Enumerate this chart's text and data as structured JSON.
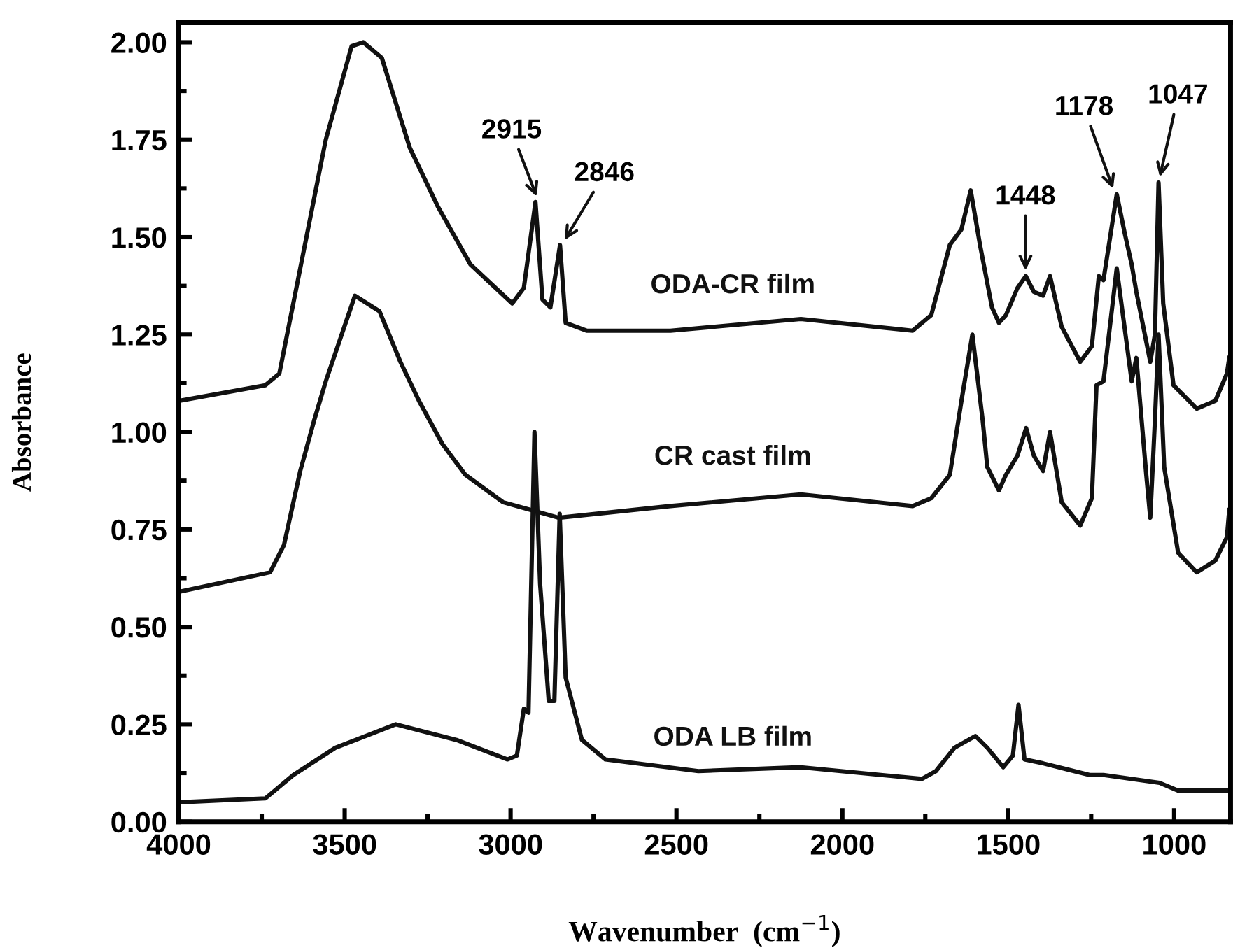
{
  "chart_data": {
    "type": "line",
    "xlabel": "Wavenumber  (cm$^{−1}$)",
    "ylabel": "Absorbance",
    "xlim": [
      4000,
      830
    ],
    "ylim": [
      0,
      2.05
    ],
    "xticks": [
      4000,
      {
        "value": 3750,
        "label": null
      },
      3500,
      {
        "value": 3250,
        "label": null
      },
      3000,
      {
        "value": 2750,
        "label": null
      },
      2500,
      {
        "value": 2250,
        "label": null
      },
      2000,
      {
        "value": 1750,
        "label": null
      },
      1500,
      {
        "value": 1250,
        "label": null
      },
      1000
    ],
    "yticks": [
      {
        "value": 0,
        "label": "0.00"
      },
      {
        "value": 0.125,
        "label": null
      },
      {
        "value": 0.25,
        "label": "0.25"
      },
      {
        "value": 0.375,
        "label": null
      },
      {
        "value": 0.5,
        "label": "0.50"
      },
      {
        "value": 0.625,
        "label": null
      },
      {
        "value": 0.75,
        "label": "0.75"
      },
      {
        "value": 0.875,
        "label": null
      },
      {
        "value": 1,
        "label": "1.00"
      },
      {
        "value": 1.125,
        "label": null
      },
      {
        "value": 1.25,
        "label": "1.25"
      },
      {
        "value": 1.375,
        "label": null
      },
      {
        "value": 1.5,
        "label": "1.50"
      },
      {
        "value": 1.625,
        "label": null
      },
      {
        "value": 1.75,
        "label": "1.75"
      },
      {
        "value": 1.875,
        "label": null
      },
      {
        "value": 2,
        "label": "2.00"
      }
    ],
    "grid": false,
    "legend": false,
    "marker": "none",
    "line_style": "solid",
    "series": [
      {
        "name": "ODA-CR film",
        "color": "#111111",
        "x": [
          4000,
          3739,
          3697,
          3641,
          3557,
          3479,
          3444,
          3388,
          3304,
          3220,
          3121,
          2995,
          2960,
          2925,
          2904,
          2880,
          2851,
          2834,
          2771,
          2518,
          2125,
          1788,
          1732,
          1676,
          1641,
          1613,
          1585,
          1549,
          1528,
          1507,
          1472,
          1447,
          1423,
          1395,
          1374,
          1339,
          1283,
          1248,
          1227,
          1213,
          1173,
          1149,
          1128,
          1114,
          1072,
          1058,
          1047,
          1033,
          1002,
          932,
          876,
          841,
          834
        ],
        "values": [
          1.08,
          1.12,
          1.15,
          1.39,
          1.75,
          1.99,
          2.0,
          1.96,
          1.73,
          1.58,
          1.43,
          1.33,
          1.37,
          1.59,
          1.34,
          1.32,
          1.48,
          1.28,
          1.26,
          1.26,
          1.29,
          1.26,
          1.3,
          1.48,
          1.52,
          1.62,
          1.48,
          1.32,
          1.28,
          1.3,
          1.37,
          1.4,
          1.36,
          1.35,
          1.4,
          1.27,
          1.18,
          1.22,
          1.4,
          1.39,
          1.61,
          1.51,
          1.43,
          1.36,
          1.18,
          1.25,
          1.64,
          1.33,
          1.12,
          1.06,
          1.08,
          1.15,
          1.19
        ]
      },
      {
        "name": "CR cast film",
        "color": "#111111",
        "x": [
          4000,
          3725,
          3683,
          3634,
          3592,
          3557,
          3469,
          3395,
          3332,
          3276,
          3206,
          3136,
          3023,
          2855,
          2518,
          2125,
          1788,
          1732,
          1676,
          1641,
          1608,
          1577,
          1563,
          1528,
          1507,
          1472,
          1446,
          1423,
          1395,
          1374,
          1339,
          1283,
          1248,
          1234,
          1213,
          1173,
          1128,
          1114,
          1084,
          1072,
          1058,
          1047,
          1030,
          988,
          932,
          876,
          841,
          834
        ],
        "values": [
          0.59,
          0.64,
          0.71,
          0.9,
          1.03,
          1.13,
          1.35,
          1.31,
          1.18,
          1.08,
          0.97,
          0.89,
          0.82,
          0.78,
          0.81,
          0.84,
          0.81,
          0.83,
          0.89,
          1.08,
          1.25,
          1.03,
          0.91,
          0.85,
          0.89,
          0.94,
          1.01,
          0.94,
          0.9,
          1.0,
          0.82,
          0.76,
          0.83,
          1.12,
          1.13,
          1.42,
          1.13,
          1.19,
          0.89,
          0.78,
          1.03,
          1.25,
          0.91,
          0.69,
          0.64,
          0.67,
          0.73,
          0.8
        ]
      },
      {
        "name": "ODA LB film",
        "color": "#111111",
        "x": [
          4000,
          3739,
          3655,
          3528,
          3346,
          3163,
          3009,
          2981,
          2960,
          2946,
          2928,
          2911,
          2885,
          2868,
          2852,
          2834,
          2785,
          2714,
          2434,
          2125,
          1760,
          1718,
          1662,
          1599,
          1563,
          1515,
          1486,
          1469,
          1451,
          1395,
          1255,
          1213,
          1044,
          988,
          834
        ],
        "values": [
          0.05,
          0.06,
          0.12,
          0.19,
          0.25,
          0.21,
          0.16,
          0.17,
          0.29,
          0.28,
          1.0,
          0.61,
          0.31,
          0.31,
          0.79,
          0.37,
          0.21,
          0.16,
          0.13,
          0.14,
          0.11,
          0.13,
          0.19,
          0.22,
          0.19,
          0.14,
          0.17,
          0.3,
          0.16,
          0.15,
          0.12,
          0.12,
          0.1,
          0.08,
          0.08
        ]
      }
    ],
    "annotations": [
      {
        "text": "2915",
        "x": 2915,
        "y": 1.59
      },
      {
        "text": "2846",
        "x": 2846,
        "y": 1.48
      },
      {
        "text": "1448",
        "x": 1448,
        "y": 1.4
      },
      {
        "text": "1178",
        "x": 1178,
        "y": 1.61
      },
      {
        "text": "1047",
        "x": 1047,
        "y": 1.64
      }
    ]
  }
}
